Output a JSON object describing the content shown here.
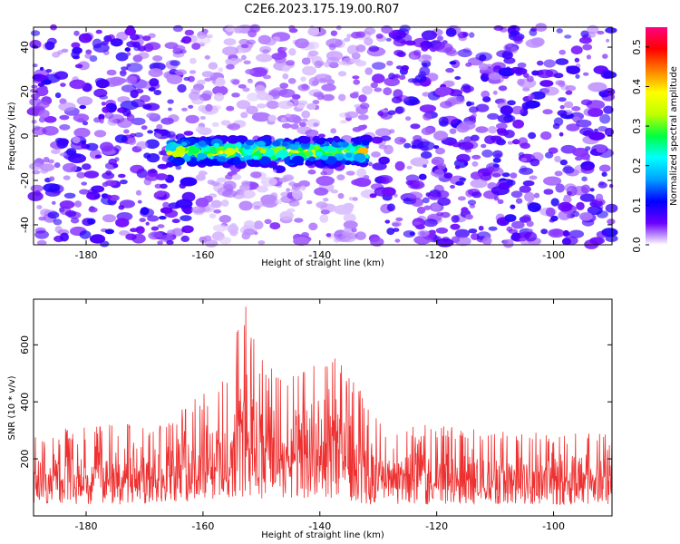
{
  "title": "C2E6.2023.175.19.00.R07",
  "chart_data": [
    {
      "type": "heatmap",
      "xlabel": "Height of straight line (km)",
      "ylabel": "Frequency (Hz)",
      "xlim": [
        -189,
        -90
      ],
      "ylim": [
        -49,
        49
      ],
      "x_ticks": [
        -180,
        -160,
        -140,
        -120,
        -100
      ],
      "y_ticks": [
        -40,
        -20,
        0,
        20,
        40
      ],
      "colorbar": {
        "label": "Normalized spectral amplitude",
        "range": [
          0.0,
          0.55
        ],
        "ticks": [
          0.0,
          0.1,
          0.2,
          0.3,
          0.4,
          0.5
        ],
        "colors": [
          "#ffffff",
          "#6a00ff",
          "#0000ff",
          "#00a0ff",
          "#00ffff",
          "#00ff40",
          "#c0ff00",
          "#ffff00",
          "#ff8000",
          "#ff0000",
          "#ff0080"
        ]
      },
      "features": {
        "band_center_hz": -7,
        "band_x_range": [
          -166,
          -132
        ],
        "band_peak_amplitude": 0.45,
        "background_amplitude": 0.08
      }
    },
    {
      "type": "line",
      "xlabel": "Height of straight line (km)",
      "ylabel": "SNR (10 * v/v)",
      "xlim": [
        -189,
        -90
      ],
      "ylim": [
        0,
        760
      ],
      "x_ticks": [
        -180,
        -160,
        -140,
        -120,
        -100
      ],
      "y_ticks": [
        200,
        400,
        600
      ],
      "color": "#ee3030",
      "envelope": [
        {
          "x": -189,
          "low": 40,
          "high": 300
        },
        {
          "x": -170,
          "low": 40,
          "high": 330
        },
        {
          "x": -165,
          "low": 50,
          "high": 360
        },
        {
          "x": -160,
          "low": 50,
          "high": 440
        },
        {
          "x": -156,
          "low": 60,
          "high": 480
        },
        {
          "x": -153,
          "low": 60,
          "high": 760
        },
        {
          "x": -150,
          "low": 60,
          "high": 560
        },
        {
          "x": -146,
          "low": 55,
          "high": 480
        },
        {
          "x": -142,
          "low": 55,
          "high": 520
        },
        {
          "x": -138,
          "low": 55,
          "high": 600
        },
        {
          "x": -135,
          "low": 55,
          "high": 520
        },
        {
          "x": -132,
          "low": 40,
          "high": 400
        },
        {
          "x": -128,
          "low": 40,
          "high": 330
        },
        {
          "x": -110,
          "low": 40,
          "high": 300
        },
        {
          "x": -90,
          "low": 40,
          "high": 290
        }
      ]
    }
  ]
}
